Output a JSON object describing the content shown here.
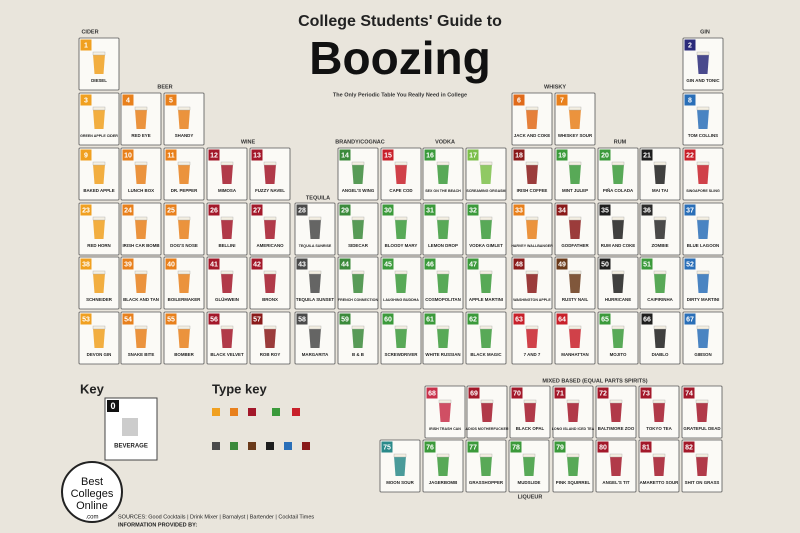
{
  "header": {
    "kicker": "College Students' Guide to",
    "title": "Boozing",
    "subtitle": "The Only Periodic Table You Really Need in College"
  },
  "groups": [
    {
      "label": "CIDER"
    },
    {
      "label": "BEER"
    },
    {
      "label": "WINE"
    },
    {
      "label": "TEQUILA"
    },
    {
      "label": "BRANDY/COGNAC"
    },
    {
      "label": "VODKA"
    },
    {
      "label": "WHISKY"
    },
    {
      "label": "RUM"
    },
    {
      "label": "GIN"
    },
    {
      "label": "MIXED BASED (EQUAL PARTS SPIRITS)"
    },
    {
      "label": "LIQUEUR"
    }
  ],
  "cells": [
    {
      "number": "1",
      "name": "DIESEL",
      "color": "#f0a020"
    },
    {
      "number": "2",
      "name": "GIN AND TONIC",
      "color": "#2a2a7a"
    },
    {
      "number": "3",
      "name": "GREEN APPLE CIDER",
      "color": "#f0a020"
    },
    {
      "number": "4",
      "name": "RED EYE",
      "color": "#e8801c"
    },
    {
      "number": "5",
      "name": "SHANDY",
      "color": "#e8801c"
    },
    {
      "number": "6",
      "name": "JACK AND COKE",
      "color": "#e06a1a"
    },
    {
      "number": "7",
      "name": "WHISKEY SOUR",
      "color": "#e8801c"
    },
    {
      "number": "8",
      "name": "TOM COLLINS",
      "color": "#2a6fb8"
    },
    {
      "number": "9",
      "name": "BAKED APPLE",
      "color": "#f0a020"
    },
    {
      "number": "10",
      "name": "LUNCH BOX",
      "color": "#e8801c"
    },
    {
      "number": "11",
      "name": "DR. PEPPER",
      "color": "#e8801c"
    },
    {
      "number": "12",
      "name": "MIMOSA",
      "color": "#a3182a"
    },
    {
      "number": "13",
      "name": "FUZZY NAVEL",
      "color": "#a3182a"
    },
    {
      "number": "14",
      "name": "ANGEL'S WING",
      "color": "#3b8a3b"
    },
    {
      "number": "15",
      "name": "CAPE COD",
      "color": "#c8202a"
    },
    {
      "number": "16",
      "name": "SEX ON THE BEACH",
      "color": "#3b9a3b"
    },
    {
      "number": "17",
      "name": "SCREAMING ORGASM",
      "color": "#7cbf4a"
    },
    {
      "number": "18",
      "name": "IRISH COFFEE",
      "color": "#8a1a1a"
    },
    {
      "number": "19",
      "name": "MINT JULEP",
      "color": "#3b9a3b"
    },
    {
      "number": "20",
      "name": "PIÑA COLADA",
      "color": "#3b9a3b"
    },
    {
      "number": "21",
      "name": "MAI TAI",
      "color": "#1e1e1e"
    },
    {
      "number": "22",
      "name": "SINGAPORE SLING",
      "color": "#c8202a"
    },
    {
      "number": "23",
      "name": "RED HORN",
      "color": "#f0a020"
    },
    {
      "number": "24",
      "name": "IRISH CAR BOMB",
      "color": "#e8801c"
    },
    {
      "number": "25",
      "name": "DOG'S NOSE",
      "color": "#e8801c"
    },
    {
      "number": "26",
      "name": "BELLINI",
      "color": "#a3182a"
    },
    {
      "number": "27",
      "name": "AMERICANO",
      "color": "#a3182a"
    },
    {
      "number": "28",
      "name": "TEQUILA SUNRISE",
      "color": "#4a4a4a"
    },
    {
      "number": "29",
      "name": "SIDECAR",
      "color": "#3b8a3b"
    },
    {
      "number": "30",
      "name": "BLOODY MARY",
      "color": "#3b9a3b"
    },
    {
      "number": "31",
      "name": "LEMON DROP",
      "color": "#3b9a3b"
    },
    {
      "number": "32",
      "name": "VODKA GIMLET",
      "color": "#3b9a3b"
    },
    {
      "number": "33",
      "name": "HARVEY WALLBANGER",
      "color": "#e8801c"
    },
    {
      "number": "34",
      "name": "GODFATHER",
      "color": "#8a1a1a"
    },
    {
      "number": "35",
      "name": "RUM AND COKE",
      "color": "#1e1e1e"
    },
    {
      "number": "36",
      "name": "ZOMBIE",
      "color": "#2a2a2a"
    },
    {
      "number": "37",
      "name": "BLUE LAGOON",
      "color": "#2a6fb8"
    },
    {
      "number": "38",
      "name": "SCHNEIDER",
      "color": "#f0a020"
    },
    {
      "number": "39",
      "name": "BLACK AND TAN",
      "color": "#e8801c"
    },
    {
      "number": "40",
      "name": "BOILERMAKER",
      "color": "#e8801c"
    },
    {
      "number": "41",
      "name": "GLÜHWEIN",
      "color": "#a3182a"
    },
    {
      "number": "42",
      "name": "BRONX",
      "color": "#a3182a"
    },
    {
      "number": "43",
      "name": "TEQUILA SUNSET",
      "color": "#4a4a4a"
    },
    {
      "number": "44",
      "name": "FRENCH CONNECTION",
      "color": "#3b8a3b"
    },
    {
      "number": "45",
      "name": "LAUGHING BUDDHA",
      "color": "#3b9a3b"
    },
    {
      "number": "46",
      "name": "COSMOPOLITAN",
      "color": "#3b9a3b"
    },
    {
      "number": "47",
      "name": "APPLE MARTINI",
      "color": "#3b9a3b"
    },
    {
      "number": "48",
      "name": "WASHINGTON APPLE",
      "color": "#8a1a1a"
    },
    {
      "number": "49",
      "name": "RUSTY NAIL",
      "color": "#6a3a1a"
    },
    {
      "number": "50",
      "name": "HURRICANE",
      "color": "#1e1e1e"
    },
    {
      "number": "51",
      "name": "CAIPIRINHA",
      "color": "#3b9a3b"
    },
    {
      "number": "52",
      "name": "DIRTY MARTINI",
      "color": "#2a6fb8"
    },
    {
      "number": "53",
      "name": "DEVON GIN",
      "color": "#f0a020"
    },
    {
      "number": "54",
      "name": "SNAKE BITE",
      "color": "#e8801c"
    },
    {
      "number": "55",
      "name": "BOMBER",
      "color": "#e8801c"
    },
    {
      "number": "56",
      "name": "BLACK VELVET",
      "color": "#a3182a"
    },
    {
      "number": "57",
      "name": "ROB ROY",
      "color": "#8a1a1a"
    },
    {
      "number": "58",
      "name": "MARGARITA",
      "color": "#4a4a4a"
    },
    {
      "number": "59",
      "name": "B & B",
      "color": "#3b8a3b"
    },
    {
      "number": "60",
      "name": "SCREWDRIVER",
      "color": "#3b9a3b"
    },
    {
      "number": "61",
      "name": "WHITE RUSSIAN",
      "color": "#3b9a3b"
    },
    {
      "number": "62",
      "name": "BLACK MAGIC",
      "color": "#3b9a3b"
    },
    {
      "number": "63",
      "name": "7 AND 7",
      "color": "#c8202a"
    },
    {
      "number": "64",
      "name": "MANHATTAN",
      "color": "#c8202a"
    },
    {
      "number": "65",
      "name": "MOJITO",
      "color": "#3b9a3b"
    },
    {
      "number": "66",
      "name": "DIABLO",
      "color": "#1e1e1e"
    },
    {
      "number": "67",
      "name": "GIBSON",
      "color": "#2a6fb8"
    },
    {
      "number": "68",
      "name": "IRISH TRASH CAN",
      "color": "#c8304a"
    },
    {
      "number": "69",
      "name": "ADIOS MOTHERFUCKER",
      "color": "#a3182a"
    },
    {
      "number": "70",
      "name": "BLACK OPAL",
      "color": "#a3182a"
    },
    {
      "number": "71",
      "name": "LONG ISLAND ICED TEA",
      "color": "#a3182a"
    },
    {
      "number": "72",
      "name": "BALTIMORE ZOO",
      "color": "#a3182a"
    },
    {
      "number": "73",
      "name": "TOKYO TEA",
      "color": "#a3182a"
    },
    {
      "number": "74",
      "name": "GRATEFUL DEAD",
      "color": "#a3182a"
    },
    {
      "number": "75",
      "name": "MOON SOUR",
      "color": "#2a8a8a"
    },
    {
      "number": "76",
      "name": "JAGERBOMB",
      "color": "#3b9a3b"
    },
    {
      "number": "77",
      "name": "GRASSHOPPER",
      "color": "#3b9a3b"
    },
    {
      "number": "78",
      "name": "MUDSLIDE",
      "color": "#3b9a3b"
    },
    {
      "number": "79",
      "name": "PINK SQUIRREL",
      "color": "#3b9a3b"
    },
    {
      "number": "80",
      "name": "ANGEL'S TIT",
      "color": "#a3182a"
    },
    {
      "number": "81",
      "name": "AMARETTO SOUR",
      "color": "#a3182a"
    },
    {
      "number": "82",
      "name": "SHIT ON GRASS",
      "color": "#a3182a"
    }
  ],
  "key": {
    "title": "Key",
    "type_title": "Type key",
    "sample_number": "0",
    "sample_name": "BEVERAGE"
  },
  "logo": {
    "line1": "Best",
    "line2": "Colleges",
    "line3": "Online",
    ".com": ".com"
  },
  "sources": {
    "line1": "SOURCES: Good Cocktails | Drink Mixer | Barnalyst | Bartender | Cocktail Times",
    "line2": "INFORMATION PROVIDED BY:"
  }
}
